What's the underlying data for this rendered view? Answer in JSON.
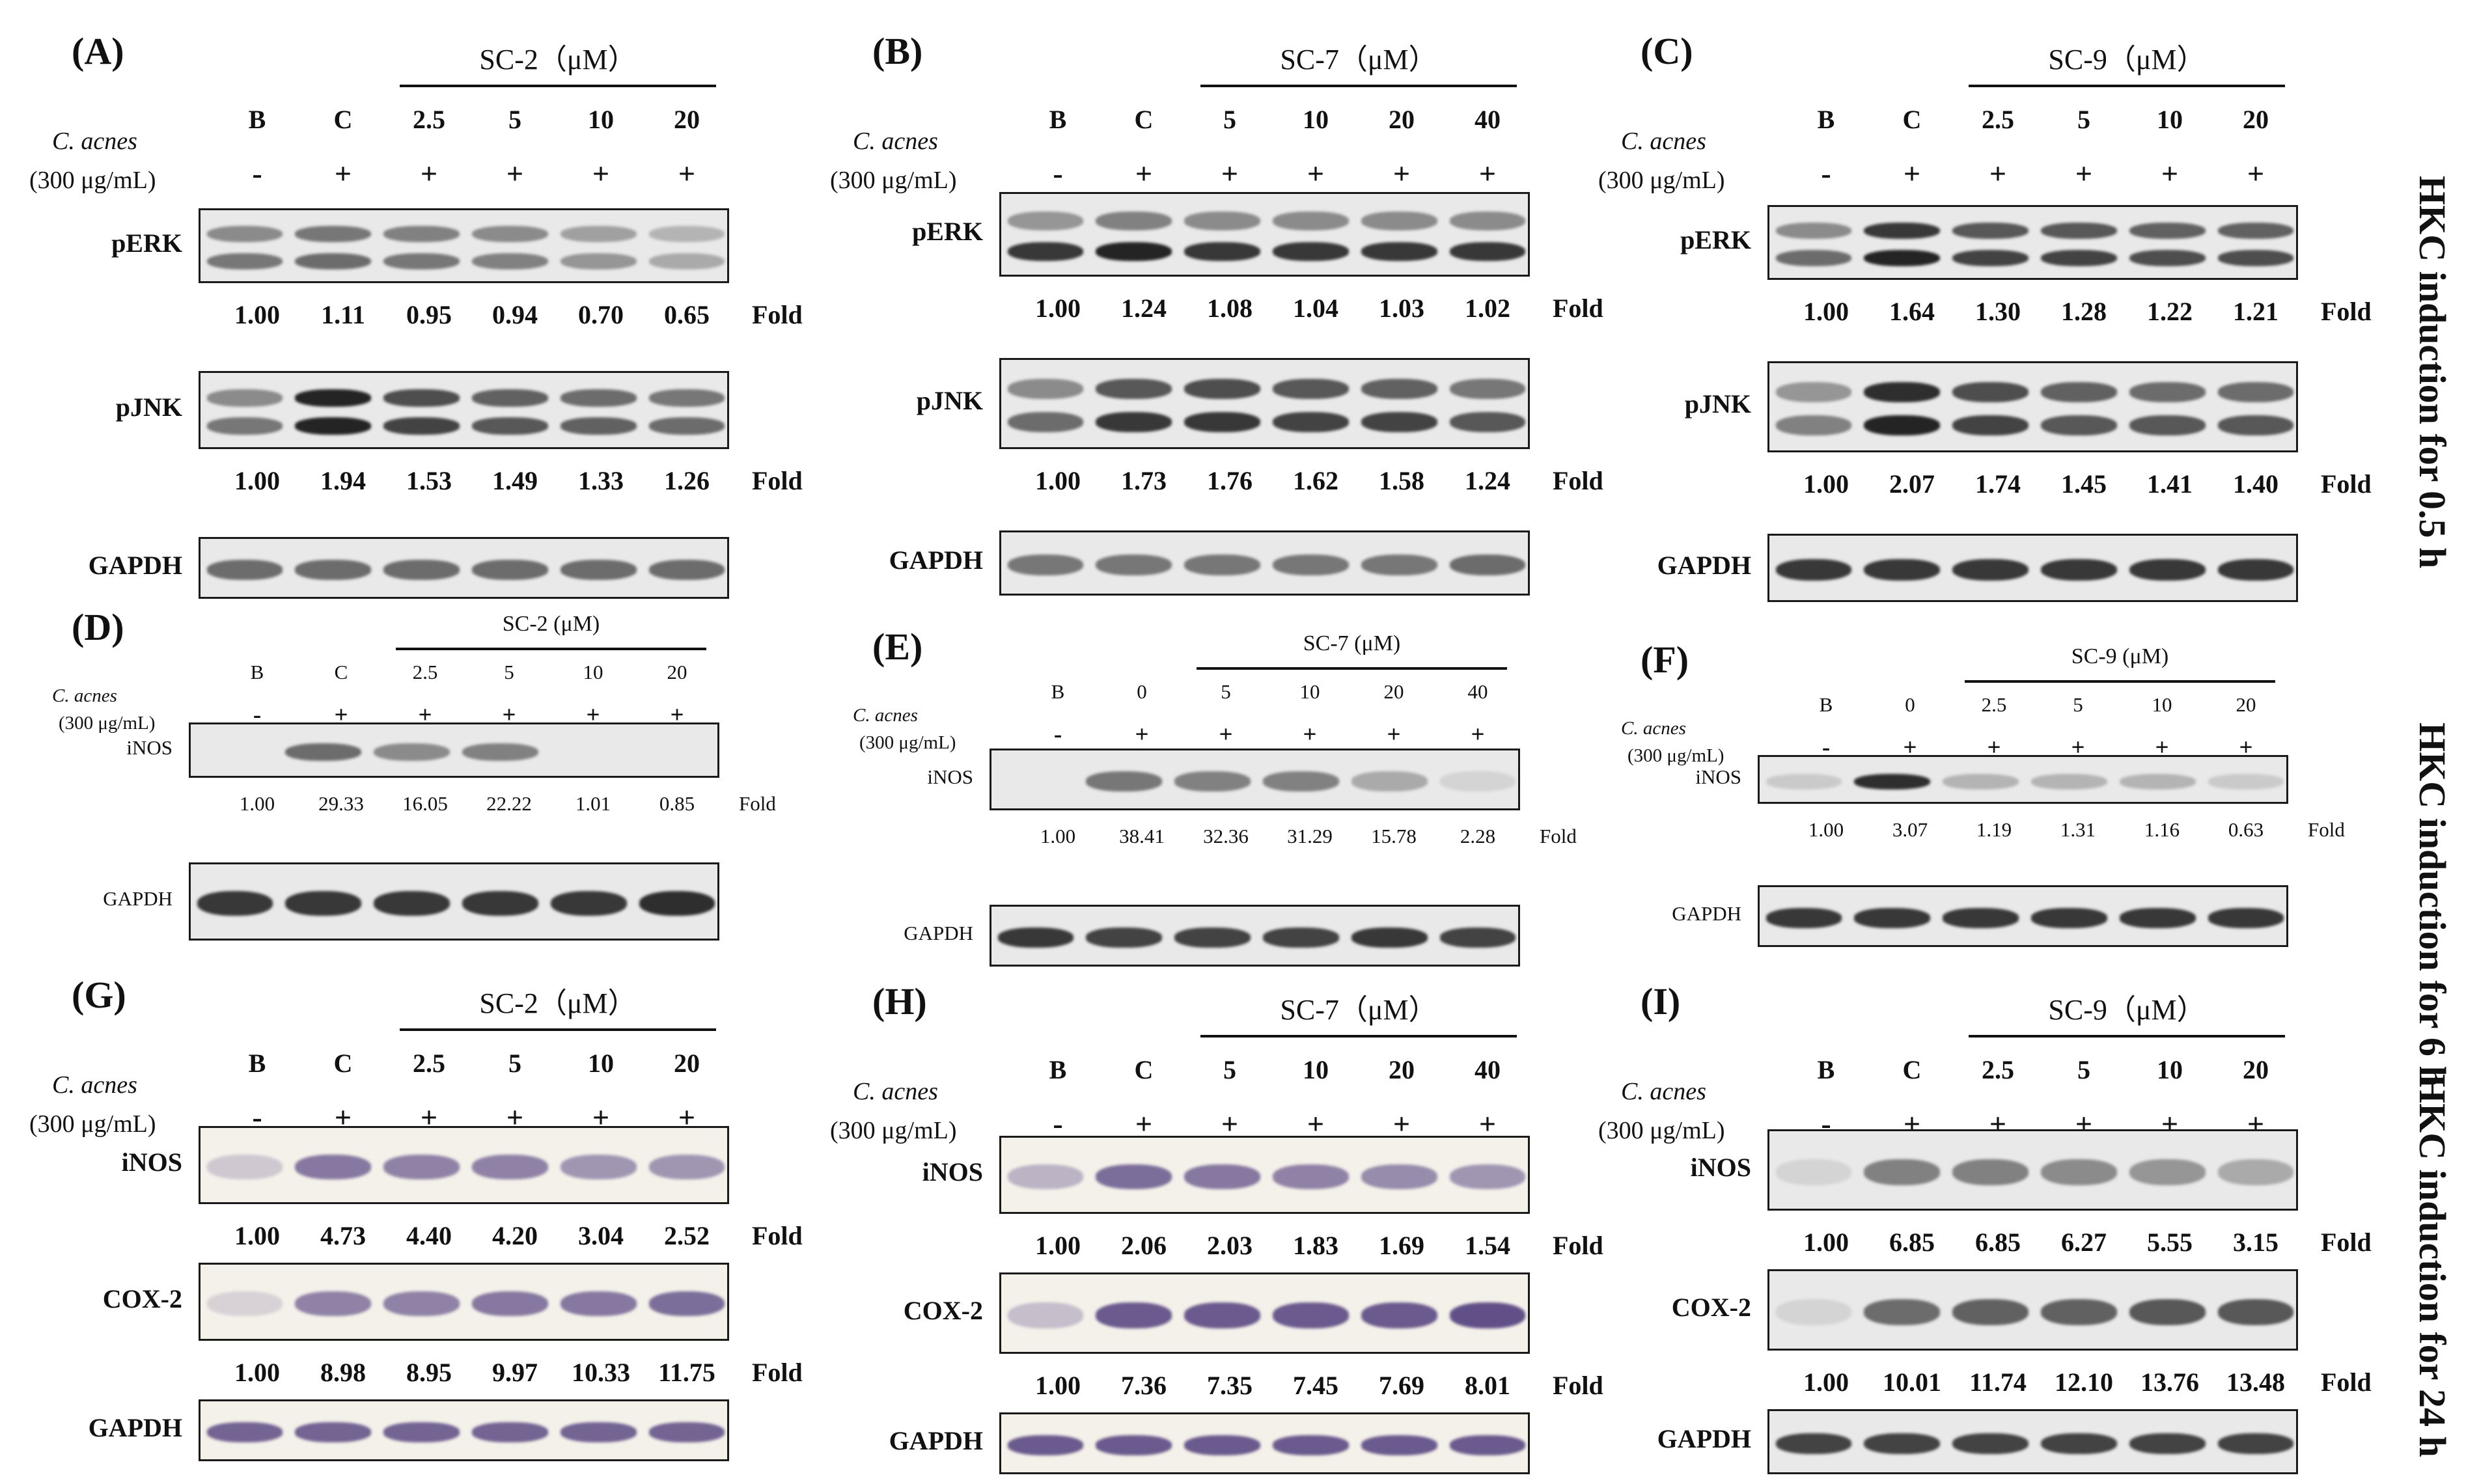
{
  "side_labels": [
    "HKC induction for 0.5 h",
    "HKC induction for 6 h",
    "HKC induction for 24 h"
  ],
  "panels": [
    {
      "label": "(A)",
      "group": "SC-2（μM）",
      "inducer": "C. acnes",
      "conc": "(300 μg/mL)",
      "lanes": [
        "B",
        "C",
        "2.5",
        "5",
        "10",
        "20"
      ],
      "signs": [
        "-",
        "+",
        "+",
        "+",
        "+",
        "+"
      ],
      "blots": [
        {
          "name": "pERK",
          "folds": [
            "1.00",
            "1.11",
            "0.95",
            "0.94",
            "0.70",
            "0.65"
          ],
          "bands": [
            [
              0.45,
              0.55
            ],
            [
              0.55,
              0.6
            ],
            [
              0.5,
              0.55
            ],
            [
              0.45,
              0.5
            ],
            [
              0.35,
              0.4
            ],
            [
              0.25,
              0.3
            ]
          ],
          "tone": "gray"
        },
        {
          "name": "pJNK",
          "folds": [
            "1.00",
            "1.94",
            "1.53",
            "1.49",
            "1.33",
            "1.26"
          ],
          "bands": [
            [
              0.45,
              0.55
            ],
            [
              0.95,
              0.95
            ],
            [
              0.75,
              0.8
            ],
            [
              0.65,
              0.7
            ],
            [
              0.6,
              0.65
            ],
            [
              0.55,
              0.6
            ]
          ],
          "tone": "gray"
        },
        {
          "name": "GAPDH",
          "folds": [],
          "bands": [
            [
              0.6
            ],
            [
              0.6
            ],
            [
              0.6
            ],
            [
              0.6
            ],
            [
              0.6
            ],
            [
              0.6
            ]
          ],
          "tone": "gray"
        }
      ]
    },
    {
      "label": "(B)",
      "group": "SC-7（μM）",
      "inducer": "C. acnes",
      "conc": "(300 μg/mL)",
      "lanes": [
        "B",
        "C",
        "5",
        "10",
        "20",
        "40"
      ],
      "signs": [
        "-",
        "+",
        "+",
        "+",
        "+",
        "+"
      ],
      "blots": [
        {
          "name": "pERK",
          "folds": [
            "1.00",
            "1.24",
            "1.08",
            "1.04",
            "1.03",
            "1.02"
          ],
          "bands": [
            [
              0.4,
              0.85
            ],
            [
              0.5,
              0.95
            ],
            [
              0.45,
              0.85
            ],
            [
              0.45,
              0.85
            ],
            [
              0.45,
              0.85
            ],
            [
              0.45,
              0.85
            ]
          ],
          "tone": "gray"
        },
        {
          "name": "pJNK",
          "folds": [
            "1.00",
            "1.73",
            "1.76",
            "1.62",
            "1.58",
            "1.24"
          ],
          "bands": [
            [
              0.45,
              0.6
            ],
            [
              0.7,
              0.85
            ],
            [
              0.75,
              0.85
            ],
            [
              0.7,
              0.8
            ],
            [
              0.65,
              0.8
            ],
            [
              0.55,
              0.7
            ]
          ],
          "tone": "gray"
        },
        {
          "name": "GAPDH",
          "folds": [],
          "bands": [
            [
              0.55
            ],
            [
              0.55
            ],
            [
              0.55
            ],
            [
              0.55
            ],
            [
              0.55
            ],
            [
              0.6
            ]
          ],
          "tone": "gray"
        }
      ]
    },
    {
      "label": "(C)",
      "group": "SC-9（μM）",
      "inducer": "C. acnes",
      "conc": "(300 μg/mL)",
      "lanes": [
        "B",
        "C",
        "2.5",
        "5",
        "10",
        "20"
      ],
      "signs": [
        "-",
        "+",
        "+",
        "+",
        "+",
        "+"
      ],
      "blots": [
        {
          "name": "pERK",
          "folds": [
            "1.00",
            "1.64",
            "1.30",
            "1.28",
            "1.22",
            "1.21"
          ],
          "bands": [
            [
              0.45,
              0.6
            ],
            [
              0.85,
              0.95
            ],
            [
              0.7,
              0.8
            ],
            [
              0.7,
              0.8
            ],
            [
              0.65,
              0.75
            ],
            [
              0.65,
              0.75
            ]
          ],
          "tone": "gray"
        },
        {
          "name": "pJNK",
          "folds": [
            "1.00",
            "2.07",
            "1.74",
            "1.45",
            "1.41",
            "1.40"
          ],
          "bands": [
            [
              0.4,
              0.5
            ],
            [
              0.9,
              0.95
            ],
            [
              0.75,
              0.8
            ],
            [
              0.65,
              0.7
            ],
            [
              0.6,
              0.7
            ],
            [
              0.6,
              0.7
            ]
          ],
          "tone": "gray"
        },
        {
          "name": "GAPDH",
          "folds": [],
          "bands": [
            [
              0.85
            ],
            [
              0.85
            ],
            [
              0.85
            ],
            [
              0.85
            ],
            [
              0.85
            ],
            [
              0.85
            ]
          ],
          "tone": "gray"
        }
      ]
    },
    {
      "label": "(D)",
      "group": "SC-2 (μM)",
      "inducer": "C. acnes",
      "conc": "(300 μg/mL)",
      "lanes": [
        "B",
        "C",
        "2.5",
        "5",
        "10",
        "20"
      ],
      "signs": [
        "-",
        "+",
        "+",
        "+",
        "+",
        "+"
      ],
      "blots": [
        {
          "name": "iNOS",
          "folds": [
            "1.00",
            "29.33",
            "16.05",
            "22.22",
            "1.01",
            "0.85"
          ],
          "bands": [
            [
              0.0
            ],
            [
              0.6
            ],
            [
              0.45
            ],
            [
              0.5
            ],
            [
              0.0
            ],
            [
              0.0
            ]
          ],
          "tone": "gray"
        },
        {
          "name": "GAPDH",
          "folds": [],
          "bands": [
            [
              0.85
            ],
            [
              0.85
            ],
            [
              0.85
            ],
            [
              0.85
            ],
            [
              0.85
            ],
            [
              0.9
            ]
          ],
          "tone": "gray"
        }
      ]
    },
    {
      "label": "(E)",
      "group": "SC-7 (μM)",
      "inducer": "C. acnes",
      "conc": "(300 μg/mL)",
      "lanes": [
        "B",
        "0",
        "5",
        "10",
        "20",
        "40"
      ],
      "signs": [
        "-",
        "+",
        "+",
        "+",
        "+",
        "+"
      ],
      "blots": [
        {
          "name": "iNOS",
          "folds": [
            "1.00",
            "38.41",
            "32.36",
            "31.29",
            "15.78",
            "2.28"
          ],
          "bands": [
            [
              0.0
            ],
            [
              0.55
            ],
            [
              0.5
            ],
            [
              0.5
            ],
            [
              0.3
            ],
            [
              0.1
            ]
          ],
          "tone": "gray"
        },
        {
          "name": "GAPDH",
          "folds": [],
          "bands": [
            [
              0.85
            ],
            [
              0.8
            ],
            [
              0.8
            ],
            [
              0.8
            ],
            [
              0.85
            ],
            [
              0.8
            ]
          ],
          "tone": "gray"
        }
      ]
    },
    {
      "label": "(F)",
      "group": "SC-9 (μM)",
      "inducer": "C. acnes",
      "conc": "(300 μg/mL)",
      "lanes": [
        "B",
        "0",
        "2.5",
        "5",
        "10",
        "20"
      ],
      "signs": [
        "-",
        "+",
        "+",
        "+",
        "+",
        "+"
      ],
      "blots": [
        {
          "name": "iNOS",
          "folds": [
            "1.00",
            "3.07",
            "1.19",
            "1.31",
            "1.16",
            "0.63"
          ],
          "bands": [
            [
              0.15
            ],
            [
              0.9
            ],
            [
              0.25
            ],
            [
              0.25
            ],
            [
              0.25
            ],
            [
              0.15
            ]
          ],
          "tone": "gray"
        },
        {
          "name": "GAPDH",
          "folds": [],
          "bands": [
            [
              0.85
            ],
            [
              0.85
            ],
            [
              0.85
            ],
            [
              0.85
            ],
            [
              0.85
            ],
            [
              0.85
            ]
          ],
          "tone": "gray"
        }
      ]
    },
    {
      "label": "(G)",
      "group": "SC-2（μM）",
      "inducer": "C. acnes",
      "conc": "(300 μg/mL)",
      "lanes": [
        "B",
        "C",
        "2.5",
        "5",
        "10",
        "20"
      ],
      "signs": [
        "-",
        "+",
        "+",
        "+",
        "+",
        "+"
      ],
      "blots": [
        {
          "name": "iNOS",
          "folds": [
            "1.00",
            "4.73",
            "4.40",
            "4.20",
            "3.04",
            "2.52"
          ],
          "bands": [
            [
              0.2
            ],
            [
              0.6
            ],
            [
              0.55
            ],
            [
              0.55
            ],
            [
              0.45
            ],
            [
              0.45
            ]
          ],
          "tone": "purple"
        },
        {
          "name": "COX-2",
          "folds": [
            "1.00",
            "8.98",
            "8.95",
            "9.97",
            "10.33",
            "11.75"
          ],
          "bands": [
            [
              0.15
            ],
            [
              0.55
            ],
            [
              0.55
            ],
            [
              0.6
            ],
            [
              0.6
            ],
            [
              0.65
            ]
          ],
          "tone": "purple"
        },
        {
          "name": "GAPDH",
          "folds": [],
          "bands": [
            [
              0.7
            ],
            [
              0.7
            ],
            [
              0.7
            ],
            [
              0.7
            ],
            [
              0.7
            ],
            [
              0.7
            ]
          ],
          "tone": "purple"
        }
      ]
    },
    {
      "label": "(H)",
      "group": "SC-7（μM）",
      "inducer": "C. acnes",
      "conc": "(300 μg/mL)",
      "lanes": [
        "B",
        "C",
        "5",
        "10",
        "20",
        "40"
      ],
      "signs": [
        "-",
        "+",
        "+",
        "+",
        "+",
        "+"
      ],
      "blots": [
        {
          "name": "iNOS",
          "folds": [
            "1.00",
            "2.06",
            "2.03",
            "1.83",
            "1.69",
            "1.54"
          ],
          "bands": [
            [
              0.3
            ],
            [
              0.65
            ],
            [
              0.6
            ],
            [
              0.55
            ],
            [
              0.5
            ],
            [
              0.45
            ]
          ],
          "tone": "purple"
        },
        {
          "name": "COX-2",
          "folds": [
            "1.00",
            "7.36",
            "7.35",
            "7.45",
            "7.69",
            "8.01"
          ],
          "bands": [
            [
              0.25
            ],
            [
              0.75
            ],
            [
              0.75
            ],
            [
              0.75
            ],
            [
              0.75
            ],
            [
              0.8
            ]
          ],
          "tone": "purple"
        },
        {
          "name": "GAPDH",
          "folds": [],
          "bands": [
            [
              0.75
            ],
            [
              0.75
            ],
            [
              0.75
            ],
            [
              0.75
            ],
            [
              0.75
            ],
            [
              0.75
            ]
          ],
          "tone": "purple"
        }
      ]
    },
    {
      "label": "(I)",
      "group": "SC-9（μM）",
      "inducer": "C. acnes",
      "conc": "(300 μg/mL)",
      "lanes": [
        "B",
        "C",
        "2.5",
        "5",
        "10",
        "20"
      ],
      "signs": [
        "-",
        "+",
        "+",
        "+",
        "+",
        "+"
      ],
      "blots": [
        {
          "name": "iNOS",
          "folds": [
            "1.00",
            "6.85",
            "6.85",
            "6.27",
            "5.55",
            "3.15"
          ],
          "bands": [
            [
              0.1
            ],
            [
              0.5
            ],
            [
              0.5
            ],
            [
              0.45
            ],
            [
              0.4
            ],
            [
              0.3
            ]
          ],
          "tone": "gray"
        },
        {
          "name": "COX-2",
          "folds": [
            "1.00",
            "10.01",
            "11.74",
            "12.10",
            "13.76",
            "13.48"
          ],
          "bands": [
            [
              0.1
            ],
            [
              0.6
            ],
            [
              0.65
            ],
            [
              0.65
            ],
            [
              0.7
            ],
            [
              0.7
            ]
          ],
          "tone": "gray"
        },
        {
          "name": "GAPDH",
          "folds": [],
          "bands": [
            [
              0.8
            ],
            [
              0.8
            ],
            [
              0.8
            ],
            [
              0.8
            ],
            [
              0.8
            ],
            [
              0.8
            ]
          ],
          "tone": "gray"
        }
      ]
    }
  ],
  "fold_label": "Fold"
}
